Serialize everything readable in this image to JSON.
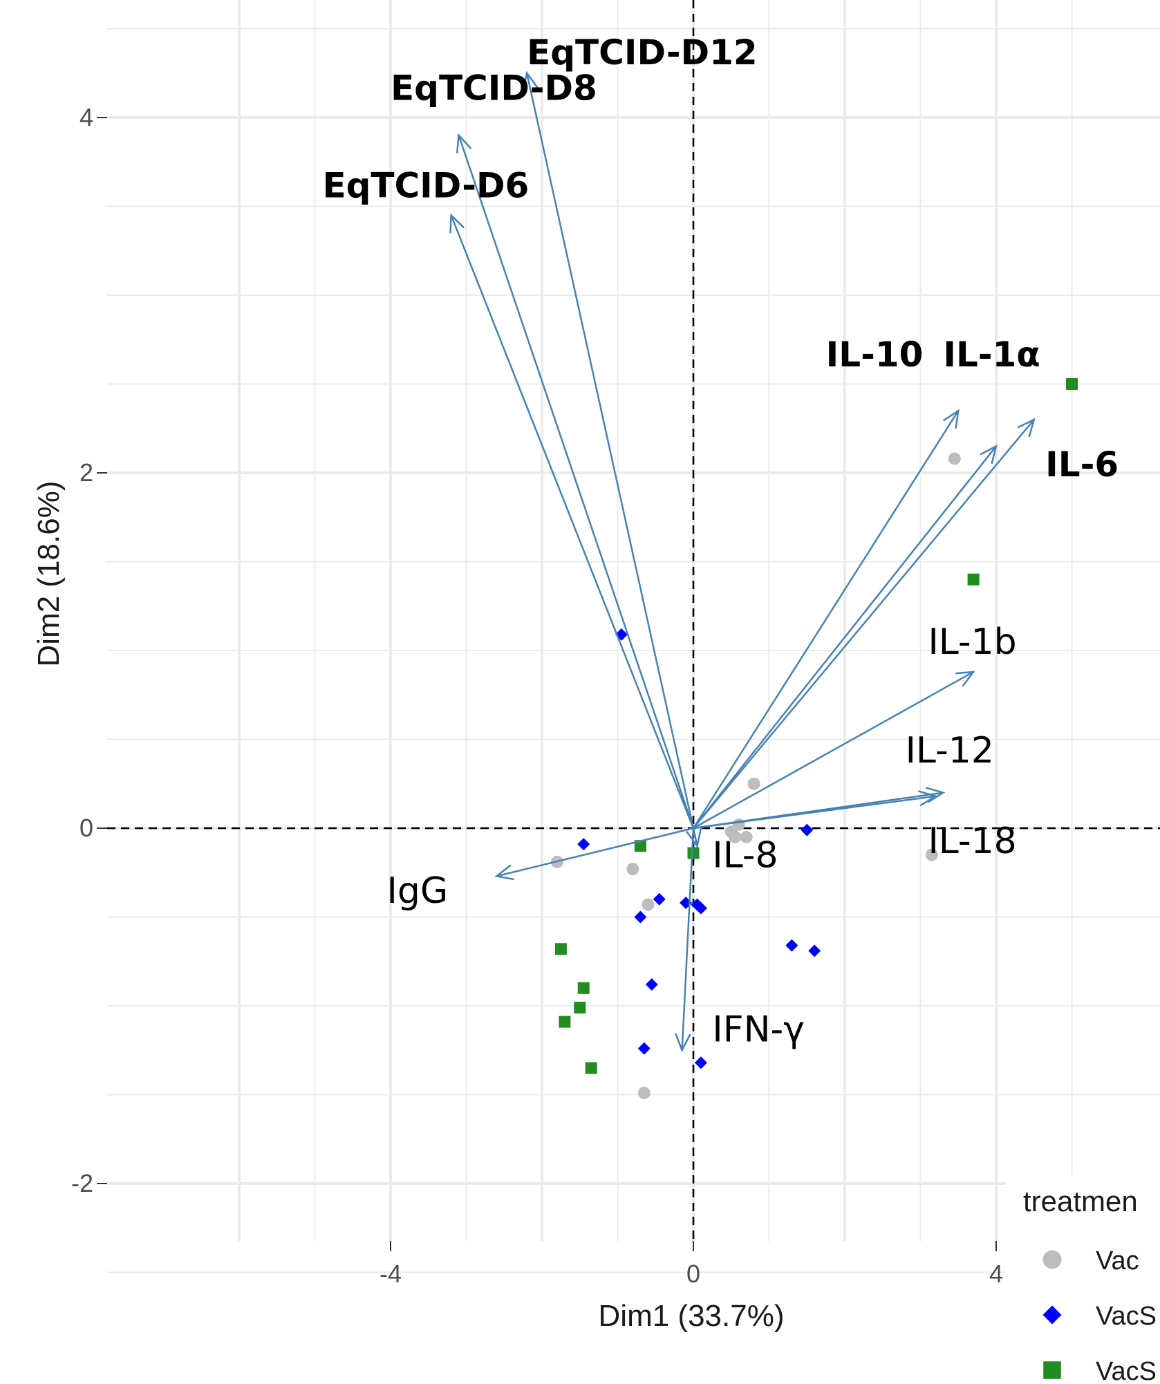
{
  "chart_data": {
    "type": "scatter",
    "subtype": "pca-biplot",
    "xlabel": "Dim1 (33.7%)",
    "ylabel": "Dim2 (18.6%)",
    "xlim": [
      -4.6,
      3.1
    ],
    "ylim": [
      -2.35,
      4.65
    ],
    "x_ticks": [
      -4,
      0,
      4
    ],
    "x_tick_labels": [
      "-4",
      "0",
      "4"
    ],
    "y_ticks": [
      -2,
      0,
      2,
      4
    ],
    "y_tick_labels": [
      "-2",
      "0",
      "2",
      "4"
    ],
    "grid": true,
    "reference_lines": {
      "x": 0,
      "y": 0,
      "style": "dashed"
    },
    "legend": {
      "title": "treatmen",
      "position": "bottom-right",
      "entries": [
        {
          "label": "Vac",
          "shape": "circle",
          "color": "#bdbdbd"
        },
        {
          "label": "VacS",
          "shape": "diamond",
          "color": "#0000ff"
        },
        {
          "label": "VacS",
          "shape": "square",
          "color": "#228b22"
        }
      ]
    },
    "vector_color": "#4682b4",
    "vectors": [
      {
        "name": "EqTCID-D12",
        "x": -2.2,
        "y": 4.25,
        "bold": true,
        "label_x": -2.2,
        "label_y": 4.3
      },
      {
        "name": "EqTCID-D8",
        "x": -3.1,
        "y": 3.9,
        "bold": true,
        "label_x": -4.0,
        "label_y": 4.1
      },
      {
        "name": "EqTCID-D6",
        "x": -3.2,
        "y": 3.45,
        "bold": true,
        "label_x": -4.9,
        "label_y": 3.55
      },
      {
        "name": "IL-10",
        "x": 3.5,
        "y": 2.35,
        "bold": true,
        "label_x": 1.75,
        "label_y": 2.6
      },
      {
        "name": "IL-1α",
        "x": 4.0,
        "y": 2.15,
        "bold": true,
        "label_x": 3.3,
        "label_y": 2.6
      },
      {
        "name": "IL-6",
        "x": 4.5,
        "y": 2.3,
        "bold": true,
        "label_x": 4.65,
        "label_y": 1.98
      },
      {
        "name": "IL-1b",
        "x": 3.7,
        "y": 0.88,
        "bold": false,
        "label_x": 3.1,
        "label_y": 0.98
      },
      {
        "name": "IL-12",
        "x": 3.3,
        "y": 0.2,
        "bold": false,
        "label_x": 2.8,
        "label_y": 0.37
      },
      {
        "name": "IL-18",
        "x": 3.2,
        "y": 0.18,
        "bold": false,
        "label_x": 3.1,
        "label_y": -0.14
      },
      {
        "name": "IL-8",
        "x": 0.05,
        "y": -0.1,
        "bold": false,
        "label_x": 0.25,
        "label_y": -0.22
      },
      {
        "name": "IgG",
        "x": -2.6,
        "y": -0.27,
        "bold": false,
        "label_x": -4.05,
        "label_y": -0.42
      },
      {
        "name": "IFN-γ",
        "x": -0.15,
        "y": -1.25,
        "bold": false,
        "label_x": 0.25,
        "label_y": -1.2
      }
    ],
    "series": [
      {
        "name": "Vac",
        "points": [
          {
            "x": 3.45,
            "y": 2.08
          },
          {
            "x": 0.8,
            "y": 0.25
          },
          {
            "x": 0.5,
            "y": -0.02
          },
          {
            "x": 0.55,
            "y": -0.05
          },
          {
            "x": 0.7,
            "y": -0.05
          },
          {
            "x": 0.6,
            "y": 0.02
          },
          {
            "x": 3.15,
            "y": -0.15
          },
          {
            "x": -1.8,
            "y": -0.19
          },
          {
            "x": -0.8,
            "y": -0.23
          },
          {
            "x": -0.6,
            "y": -0.43
          },
          {
            "x": -0.65,
            "y": -1.49
          }
        ]
      },
      {
        "name": "VacS",
        "points": [
          {
            "x": -0.95,
            "y": 1.09
          },
          {
            "x": 1.5,
            "y": -0.01
          },
          {
            "x": -1.45,
            "y": -0.09
          },
          {
            "x": -0.45,
            "y": -0.4
          },
          {
            "x": -0.1,
            "y": -0.42
          },
          {
            "x": 0.05,
            "y": -0.43
          },
          {
            "x": 0.1,
            "y": -0.45
          },
          {
            "x": -0.7,
            "y": -0.5
          },
          {
            "x": 1.3,
            "y": -0.66
          },
          {
            "x": 1.6,
            "y": -0.69
          },
          {
            "x": -0.55,
            "y": -0.88
          },
          {
            "x": -0.65,
            "y": -1.24
          },
          {
            "x": 0.1,
            "y": -1.32
          }
        ]
      },
      {
        "name": "VacS",
        "points": [
          {
            "x": 5.0,
            "y": 2.5
          },
          {
            "x": 3.7,
            "y": 1.4
          },
          {
            "x": -0.7,
            "y": -0.1
          },
          {
            "x": 0.0,
            "y": -0.14
          },
          {
            "x": -1.75,
            "y": -0.68
          },
          {
            "x": -1.45,
            "y": -0.9
          },
          {
            "x": -1.5,
            "y": -1.01
          },
          {
            "x": -1.7,
            "y": -1.09
          },
          {
            "x": -1.35,
            "y": -1.35
          }
        ]
      }
    ]
  }
}
